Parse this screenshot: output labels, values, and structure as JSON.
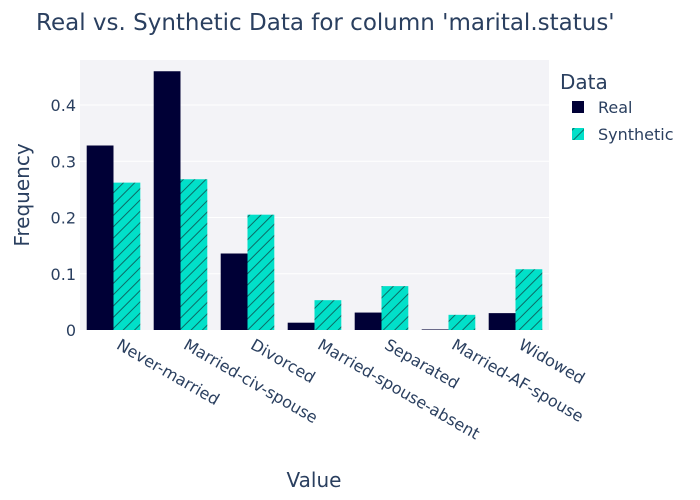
{
  "chart_data": {
    "type": "bar",
    "title": "Real vs. Synthetic Data for column 'marital.status'",
    "xlabel": "Value",
    "ylabel": "Frequency",
    "ylim": [
      0,
      0.48
    ],
    "yticks": [
      0,
      0.1,
      0.2,
      0.3,
      0.4
    ],
    "ytick_labels": [
      "0",
      "0.1",
      "0.2",
      "0.3",
      "0.4"
    ],
    "grid": true,
    "legend_title": "Data",
    "legend_position": "top-right",
    "categories": [
      "Never-married",
      "Married-civ-spouse",
      "Divorced",
      "Married-spouse-absent",
      "Separated",
      "Married-AF-spouse",
      "Widowed"
    ],
    "series": [
      {
        "name": "Real",
        "color": "#000036",
        "pattern": "none",
        "values": [
          0.328,
          0.46,
          0.136,
          0.013,
          0.031,
          0.001,
          0.03
        ]
      },
      {
        "name": "Synthetic",
        "color": "#01e0c9",
        "pattern": "diagonal-hatch",
        "values": [
          0.262,
          0.268,
          0.205,
          0.053,
          0.078,
          0.027,
          0.108
        ]
      }
    ]
  }
}
